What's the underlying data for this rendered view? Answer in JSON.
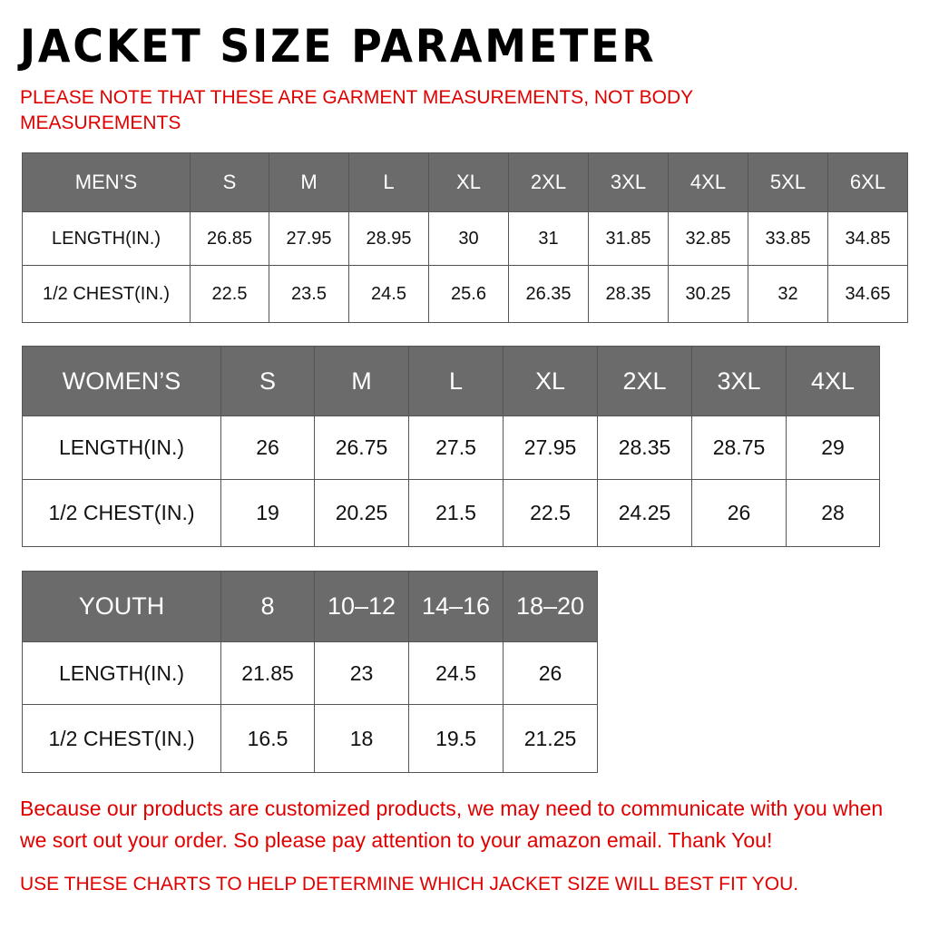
{
  "title": "JACKET SIZE PARAMETER",
  "note": "PLEASE NOTE THAT THESE ARE GARMENT MEASUREMENTS, NOT BODY MEASUREMENTS",
  "tables": [
    {
      "header": [
        "MEN’S",
        "S",
        "M",
        "L",
        "XL",
        "2XL",
        "3XL",
        "4XL",
        "5XL",
        "6XL"
      ],
      "rows": [
        [
          "LENGTH(IN.)",
          "26.85",
          "27.95",
          "28.95",
          "30",
          "31",
          "31.85",
          "32.85",
          "33.85",
          "34.85"
        ],
        [
          "1/2 CHEST(IN.)",
          "22.5",
          "23.5",
          "24.5",
          "25.6",
          "26.35",
          "28.35",
          "30.25",
          "32",
          "34.65"
        ]
      ]
    },
    {
      "header": [
        "WOMEN’S",
        "S",
        "M",
        "L",
        "XL",
        "2XL",
        "3XL",
        "4XL"
      ],
      "rows": [
        [
          "LENGTH(IN.)",
          "26",
          "26.75",
          "27.5",
          "27.95",
          "28.35",
          "28.75",
          "29"
        ],
        [
          "1/2 CHEST(IN.)",
          "19",
          "20.25",
          "21.5",
          "22.5",
          "24.25",
          "26",
          "28"
        ]
      ]
    },
    {
      "header": [
        "YOUTH",
        "8",
        "10–12",
        "14–16",
        "18–20"
      ],
      "rows": [
        [
          "LENGTH(IN.)",
          "21.85",
          "23",
          "24.5",
          "26"
        ],
        [
          "1/2 CHEST(IN.)",
          "16.5",
          "18",
          "19.5",
          "21.25"
        ]
      ]
    }
  ],
  "footer": {
    "line1": "Because our products are customized products, we may need to communicate with you when we sort out your order. So please pay attention to your amazon email. Thank You!",
    "line2": "USE THESE CHARTS TO HELP DETERMINE WHICH JACKET SIZE WILL BEST FIT YOU."
  },
  "colors": {
    "header_bg": "#6b6b6b",
    "note_red": "#e00000"
  }
}
